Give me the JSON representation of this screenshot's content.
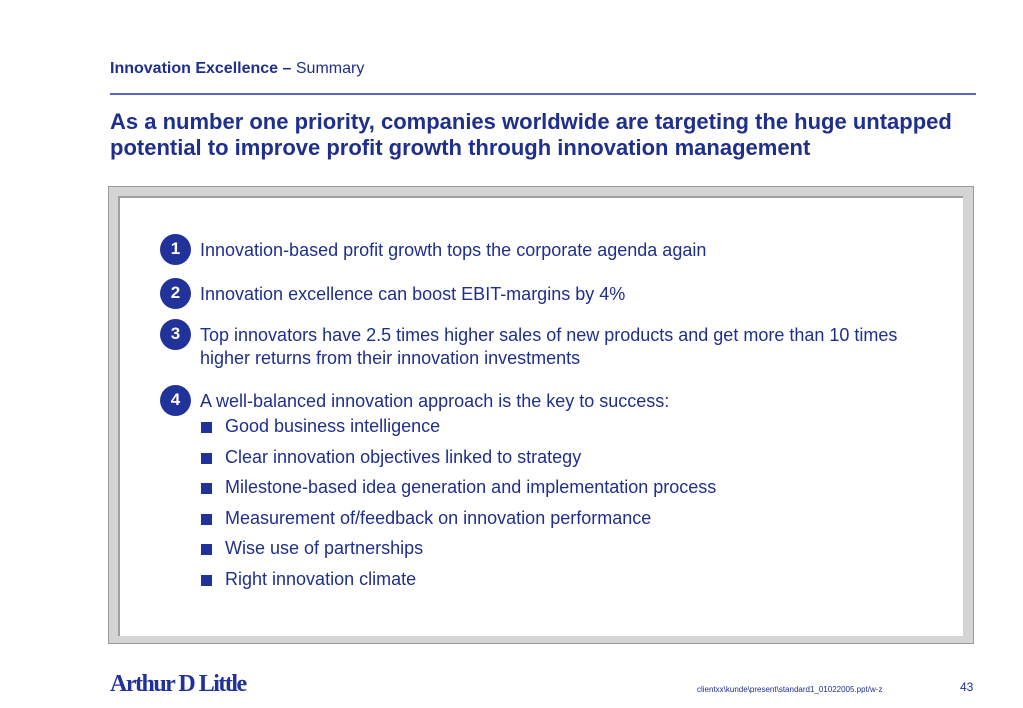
{
  "header": {
    "section_bold": "Innovation Excellence",
    "separator": "–",
    "section_sub": "Summary",
    "headline": "As a number one priority, companies worldwide are targeting the huge untapped potential to improve profit growth through innovation management"
  },
  "points": [
    {
      "number": "1",
      "text": "Innovation-based profit growth tops the corporate agenda again"
    },
    {
      "number": "2",
      "text": "Innovation excellence can boost EBIT-margins by 4%"
    },
    {
      "number": "3",
      "text": "Top innovators have 2.5 times higher sales of new products and get more than 10 times higher returns from their innovation investments"
    },
    {
      "number": "4",
      "text": "A well-balanced innovation approach is the key to success:"
    }
  ],
  "sub_points": [
    "Good business intelligence",
    "Clear innovation objectives linked to strategy",
    "Milestone-based idea generation and implementation process",
    "Measurement of/feedback on innovation performance",
    "Wise use of partnerships",
    "Right innovation climate"
  ],
  "footer": {
    "logo": "Arthur D Little",
    "path": "clientxx\\kunde\\present\\standard1_01022005.ppt/w-z",
    "page_number": "43"
  },
  "colors": {
    "text": "#1f2f8c",
    "accent": "#22329b",
    "rule": "#5566c4",
    "panel_frame": "#d4d4d4"
  }
}
